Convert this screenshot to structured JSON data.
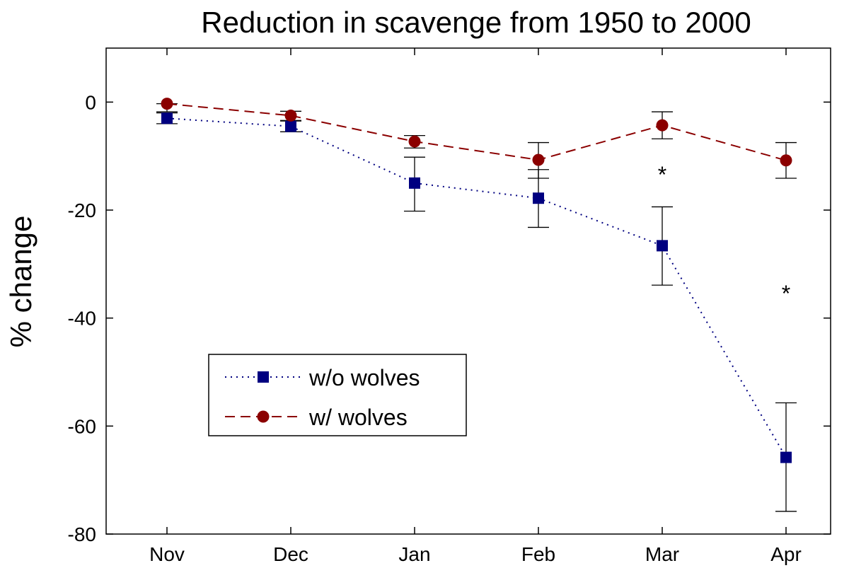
{
  "chart_data": {
    "type": "line",
    "title": "Reduction in scavenge from 1950 to 2000",
    "xlabel": "",
    "ylabel": "% change",
    "categories": [
      "Nov",
      "Dec",
      "Jan",
      "Feb",
      "Mar",
      "Apr"
    ],
    "ylim": [
      -80,
      10
    ],
    "yticks": [
      0,
      -20,
      -40,
      -60,
      -80
    ],
    "grid": false,
    "legend_position": "center-left",
    "series": [
      {
        "name": "w/o wolves",
        "color": "#000080",
        "marker": "square",
        "line_style": "dotted",
        "values": [
          -3.0,
          -4.5,
          -15.0,
          -17.8,
          -26.6,
          -65.8
        ],
        "error_low": [
          -4.0,
          -5.5,
          -20.2,
          -23.2,
          -33.9,
          -75.8
        ],
        "error_high": [
          -2.0,
          -3.5,
          -10.2,
          -12.5,
          -19.4,
          -55.7
        ]
      },
      {
        "name": "w/ wolves",
        "color": "#8b0000",
        "marker": "circle",
        "line_style": "dashed",
        "values": [
          -0.3,
          -2.5,
          -7.3,
          -10.7,
          -4.3,
          -10.8
        ],
        "error_low": [
          -1.8,
          -3.4,
          -8.5,
          -14.1,
          -6.8,
          -14.1
        ],
        "error_high": [
          -0.3,
          -1.7,
          -6.2,
          -7.5,
          -1.8,
          -7.5
        ]
      }
    ],
    "annotations": [
      {
        "text": "*",
        "category": "Mar",
        "y": -13.3
      },
      {
        "text": "*",
        "category": "Apr",
        "y": -35.3
      }
    ]
  }
}
